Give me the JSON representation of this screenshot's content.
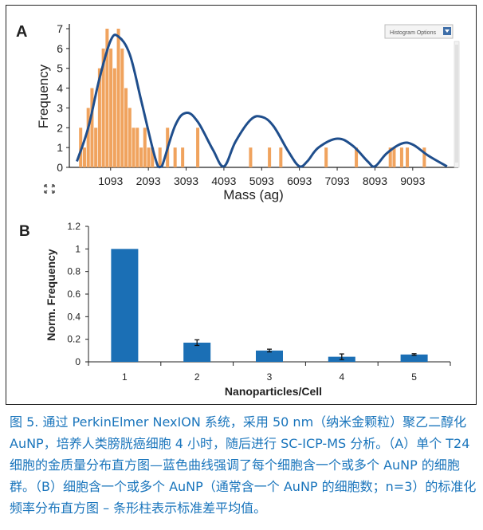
{
  "panels": {
    "a_letter": "A",
    "b_letter": "B"
  },
  "histogram_options_label": "Histogram Options",
  "caption": "图 5. 通过 PerkinElmer NexION 系统，采用 50 nm（纳米金颗粒）聚乙二醇化 AuNP，培养人类膀胱癌细胞 4 小时，随后进行 SC-ICP-MS 分析。（A）单个 T24 细胞的金质量分布直方图—蓝色曲线强调了每个细胞含一个或多个 AuNP 的细胞群。（B）细胞含一个或多个 AuNP（通常含一个 AuNP 的细胞数；n=3）的标准化频率分布直方图 – 条形柱表示标准差平均值。",
  "colors": {
    "bar_orange": "#f0a35e",
    "curve_blue": "#1f4e8c",
    "bar_blue": "#1b6fb5",
    "caption_blue": "#1a75bc"
  },
  "chart_data": [
    {
      "type": "bar",
      "title": "",
      "xlabel": "Mass (ag)",
      "ylabel": "Frequency",
      "xlim": [
        0,
        10300
      ],
      "ylim": [
        0,
        7
      ],
      "xticks": [
        "1093",
        "2093",
        "3093",
        "4093",
        "5093",
        "6093",
        "7093",
        "8093",
        "9093"
      ],
      "yticks": [
        "0",
        "1",
        "2",
        "3",
        "4",
        "5",
        "6",
        "7"
      ],
      "bar_width": 85,
      "bars": [
        {
          "x": 300,
          "y": 2
        },
        {
          "x": 400,
          "y": 1
        },
        {
          "x": 500,
          "y": 3
        },
        {
          "x": 600,
          "y": 4
        },
        {
          "x": 700,
          "y": 2
        },
        {
          "x": 800,
          "y": 5
        },
        {
          "x": 900,
          "y": 6
        },
        {
          "x": 1000,
          "y": 7
        },
        {
          "x": 1100,
          "y": 6
        },
        {
          "x": 1200,
          "y": 5
        },
        {
          "x": 1300,
          "y": 7
        },
        {
          "x": 1400,
          "y": 6
        },
        {
          "x": 1500,
          "y": 4
        },
        {
          "x": 1600,
          "y": 3
        },
        {
          "x": 1700,
          "y": 2
        },
        {
          "x": 1800,
          "y": 2
        },
        {
          "x": 1900,
          "y": 1
        },
        {
          "x": 2000,
          "y": 2
        },
        {
          "x": 2100,
          "y": 1
        },
        {
          "x": 2200,
          "y": 1
        },
        {
          "x": 2400,
          "y": 1
        },
        {
          "x": 2600,
          "y": 2
        },
        {
          "x": 2800,
          "y": 1
        },
        {
          "x": 3000,
          "y": 1
        },
        {
          "x": 3400,
          "y": 2
        },
        {
          "x": 4800,
          "y": 1
        },
        {
          "x": 5300,
          "y": 1
        },
        {
          "x": 5600,
          "y": 1
        },
        {
          "x": 6800,
          "y": 1
        },
        {
          "x": 7600,
          "y": 1
        },
        {
          "x": 8500,
          "y": 1
        },
        {
          "x": 8600,
          "y": 1
        },
        {
          "x": 8800,
          "y": 1
        },
        {
          "x": 8950,
          "y": 1
        },
        {
          "x": 9400,
          "y": 1
        }
      ],
      "curve": [
        {
          "x": 200,
          "y": 0.3
        },
        {
          "x": 500,
          "y": 2.0
        },
        {
          "x": 800,
          "y": 4.5
        },
        {
          "x": 1093,
          "y": 6.4
        },
        {
          "x": 1300,
          "y": 6.6
        },
        {
          "x": 1600,
          "y": 5.7
        },
        {
          "x": 1900,
          "y": 3.4
        },
        {
          "x": 2200,
          "y": 1.0
        },
        {
          "x": 2350,
          "y": 0.05
        },
        {
          "x": 2450,
          "y": 0.05
        },
        {
          "x": 2800,
          "y": 2.1
        },
        {
          "x": 3093,
          "y": 2.75
        },
        {
          "x": 3400,
          "y": 2.3
        },
        {
          "x": 3800,
          "y": 0.9
        },
        {
          "x": 4093,
          "y": 0.05
        },
        {
          "x": 4400,
          "y": 1.3
        },
        {
          "x": 4800,
          "y": 2.4
        },
        {
          "x": 5093,
          "y": 2.55
        },
        {
          "x": 5400,
          "y": 2.1
        },
        {
          "x": 5800,
          "y": 0.8
        },
        {
          "x": 6093,
          "y": 0.05
        },
        {
          "x": 6300,
          "y": 0.3
        },
        {
          "x": 6600,
          "y": 1.0
        },
        {
          "x": 7093,
          "y": 1.45
        },
        {
          "x": 7500,
          "y": 1.1
        },
        {
          "x": 7900,
          "y": 0.3
        },
        {
          "x": 8093,
          "y": 0.05
        },
        {
          "x": 8400,
          "y": 0.7
        },
        {
          "x": 8800,
          "y": 1.2
        },
        {
          "x": 9093,
          "y": 1.15
        },
        {
          "x": 9500,
          "y": 0.6
        },
        {
          "x": 10000,
          "y": 0.05
        }
      ]
    },
    {
      "type": "bar",
      "title": "",
      "xlabel": "Nanoparticles/Cell",
      "ylabel": "Norm. Frequency",
      "ylim": [
        0,
        1.2
      ],
      "yticks": [
        "0",
        "0.2",
        "0.4",
        "0.6",
        "0.8",
        "1",
        "1.2"
      ],
      "categories": [
        "1",
        "2",
        "3",
        "4",
        "5"
      ],
      "values": [
        1.0,
        0.17,
        0.1,
        0.045,
        0.065
      ],
      "errors": [
        0,
        0.025,
        0.012,
        0.025,
        0.007
      ]
    }
  ]
}
